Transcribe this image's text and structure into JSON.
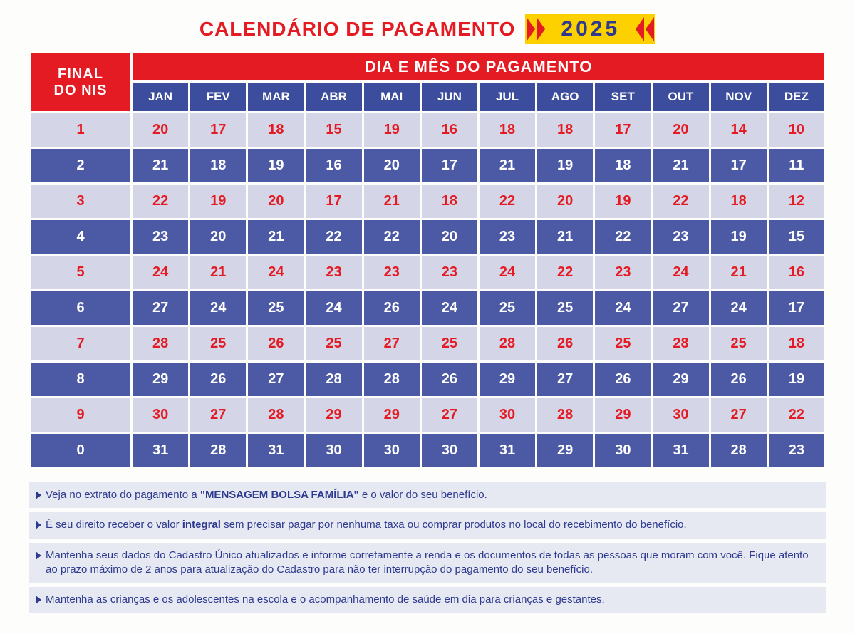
{
  "title": "CALENDÁRIO DE PAGAMENTO",
  "year": "2025",
  "colors": {
    "red": "#e41b23",
    "blue_header": "#3d4d9e",
    "blue_dark_row": "#4c5aa6",
    "blue_light_row": "#d4d6e8",
    "yellow": "#fdd100",
    "text_blue": "#2e3a8f",
    "note_bg": "#e7e9f2",
    "white": "#ffffff",
    "page_bg": "#fdfdfb"
  },
  "fonts": {
    "title_size_pt": 21,
    "year_size_pt": 22,
    "header_size_pt": 16,
    "month_size_pt": 13,
    "cell_size_pt": 15,
    "note_size_pt": 11
  },
  "table": {
    "type": "table",
    "corner_label_line1": "FINAL",
    "corner_label_line2": "DO NIS",
    "span_header": "DIA E MÊS DO PAGAMENTO",
    "months": [
      "JAN",
      "FEV",
      "MAR",
      "ABR",
      "MAI",
      "JUN",
      "JUL",
      "AGO",
      "SET",
      "OUT",
      "NOV",
      "DEZ"
    ],
    "nis": [
      "1",
      "2",
      "3",
      "4",
      "5",
      "6",
      "7",
      "8",
      "9",
      "0"
    ],
    "rows": [
      [
        "20",
        "17",
        "18",
        "15",
        "19",
        "16",
        "18",
        "18",
        "17",
        "20",
        "14",
        "10"
      ],
      [
        "21",
        "18",
        "19",
        "16",
        "20",
        "17",
        "21",
        "19",
        "18",
        "21",
        "17",
        "11"
      ],
      [
        "22",
        "19",
        "20",
        "17",
        "21",
        "18",
        "22",
        "20",
        "19",
        "22",
        "18",
        "12"
      ],
      [
        "23",
        "20",
        "21",
        "22",
        "22",
        "20",
        "23",
        "21",
        "22",
        "23",
        "19",
        "15"
      ],
      [
        "24",
        "21",
        "24",
        "23",
        "23",
        "23",
        "24",
        "22",
        "23",
        "24",
        "21",
        "16"
      ],
      [
        "27",
        "24",
        "25",
        "24",
        "26",
        "24",
        "25",
        "25",
        "24",
        "27",
        "24",
        "17"
      ],
      [
        "28",
        "25",
        "26",
        "25",
        "27",
        "25",
        "28",
        "26",
        "25",
        "28",
        "25",
        "18"
      ],
      [
        "29",
        "26",
        "27",
        "28",
        "28",
        "26",
        "29",
        "27",
        "26",
        "29",
        "26",
        "19"
      ],
      [
        "30",
        "27",
        "28",
        "29",
        "29",
        "27",
        "30",
        "28",
        "29",
        "30",
        "27",
        "22"
      ],
      [
        "31",
        "28",
        "31",
        "30",
        "30",
        "30",
        "31",
        "29",
        "30",
        "31",
        "28",
        "23"
      ]
    ],
    "row_styles": [
      "light",
      "dark",
      "light",
      "dark",
      "light",
      "dark",
      "light",
      "dark",
      "light",
      "dark"
    ]
  },
  "notes": [
    {
      "pre": "Veja no extrato do pagamento a ",
      "bold": "\"MENSAGEM BOLSA FAMÍLIA\"",
      "post": " e o valor do seu benefício."
    },
    {
      "pre": "É seu direito receber o valor ",
      "bold": "integral",
      "post": " sem precisar pagar por nenhuma taxa ou comprar produtos no local do recebimento do benefício."
    },
    {
      "pre": "",
      "bold": "",
      "post": "Mantenha seus dados do Cadastro Único atualizados e informe corretamente a renda e os documentos de todas as pessoas que moram com você. Fique atento ao prazo máximo de 2 anos para atualização do Cadastro para não ter interrupção do pagamento do seu benefício."
    },
    {
      "pre": "",
      "bold": "",
      "post": "Mantenha as crianças e os adolescentes na escola e o acompanhamento de saúde em dia para crianças e gestantes."
    }
  ]
}
